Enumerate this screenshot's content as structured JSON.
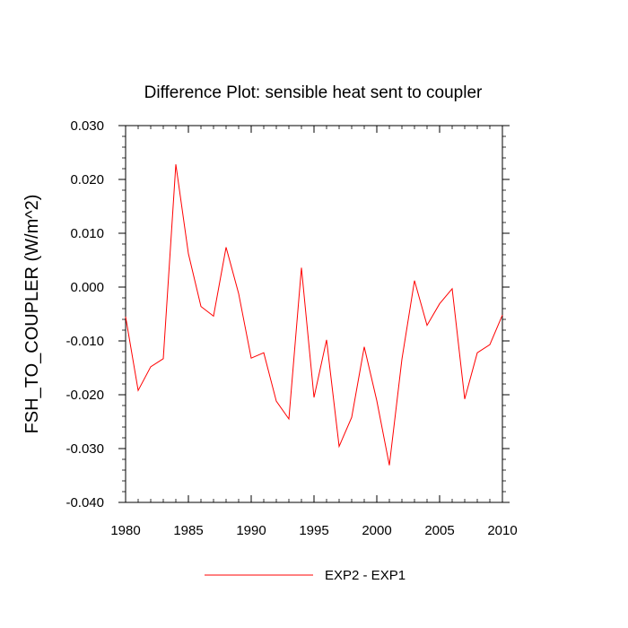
{
  "chart_data": {
    "type": "line",
    "title": "Difference Plot: sensible heat sent to coupler",
    "xlabel": "",
    "ylabel": "FSH_TO_COUPLER  (W/m^2)",
    "xlim": [
      1980,
      2010
    ],
    "ylim": [
      -0.04,
      0.03
    ],
    "x_ticks": [
      1980,
      1985,
      1990,
      1995,
      2000,
      2005,
      2010
    ],
    "x_tick_labels": [
      "1980",
      "1985",
      "1990",
      "1995",
      "2000",
      "2005",
      "2010"
    ],
    "y_ticks": [
      -0.04,
      -0.03,
      -0.02,
      -0.01,
      0.0,
      0.01,
      0.02,
      0.03
    ],
    "y_tick_labels": [
      "-0.040",
      "-0.030",
      "-0.020",
      "-0.010",
      "0.000",
      "0.010",
      "0.020",
      "0.030"
    ],
    "grid": false,
    "legend_position": "bottom-center",
    "series": [
      {
        "name": "EXP2 - EXP1",
        "color": "#ff0000",
        "x": [
          1980,
          1981,
          1982,
          1983,
          1984,
          1985,
          1986,
          1987,
          1988,
          1989,
          1990,
          1991,
          1992,
          1993,
          1994,
          1995,
          1996,
          1997,
          1998,
          1999,
          2000,
          2001,
          2002,
          2003,
          2004,
          2005,
          2006,
          2007,
          2008,
          2009,
          2010
        ],
        "y": [
          -0.0055,
          -0.0192,
          -0.0148,
          -0.0133,
          0.0228,
          0.0062,
          -0.0036,
          -0.0054,
          0.0074,
          -0.0012,
          -0.0132,
          -0.0122,
          -0.0212,
          -0.0245,
          0.0036,
          -0.0205,
          -0.0098,
          -0.0296,
          -0.0242,
          -0.0111,
          -0.0211,
          -0.0331,
          -0.0134,
          0.0012,
          -0.0071,
          -0.0031,
          -0.0003,
          -0.0208,
          -0.0122,
          -0.0107,
          -0.0052
        ]
      }
    ]
  }
}
